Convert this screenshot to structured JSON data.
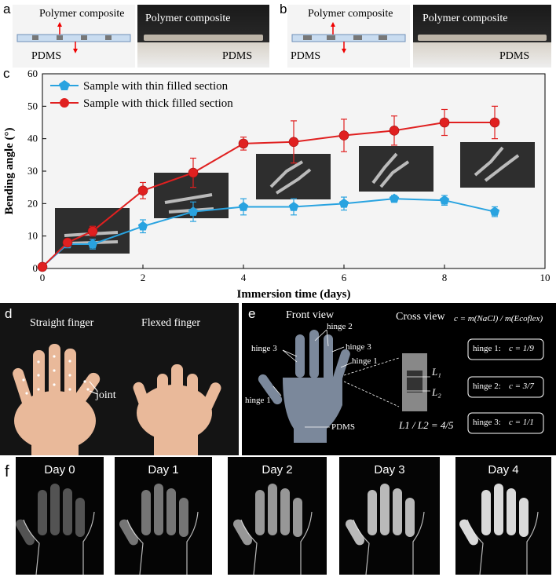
{
  "panels": {
    "a": {
      "letter": "a",
      "label_top": "Polymer composite",
      "label_bottom": "PDMS",
      "photo_label_top": "Polymer composite",
      "photo_label_bottom": "PDMS"
    },
    "b": {
      "letter": "b",
      "label_top": "Polymer composite",
      "label_bottom": "PDMS",
      "photo_label_top": "Polymer composite",
      "photo_label_bottom": "PDMS"
    },
    "c": {
      "letter": "c"
    },
    "d": {
      "letter": "d",
      "left_title": "Straight finger",
      "right_title": "Flexed finger",
      "joint_label": "joint"
    },
    "e": {
      "letter": "e",
      "front_view": "Front view",
      "cross_view": "Cross view",
      "hinge_1": "hinge 1",
      "hinge_2": "hinge 2",
      "hinge_3": "hinge 3",
      "pdms": "PDMS",
      "formula": "c = m(NaCl) / m(Ecoflex)",
      "ratio": "L1 / L2 = 4/5",
      "hinges": [
        {
          "label": "hinge 1:",
          "c": "c = 1/9"
        },
        {
          "label": "hinge 2:",
          "c": "c = 3/7"
        },
        {
          "label": "hinge 3:",
          "c": "c = 1/1"
        }
      ]
    },
    "f": {
      "letter": "f",
      "days": [
        "Day 0",
        "Day 1",
        "Day 2",
        "Day 3",
        "Day 4"
      ]
    }
  },
  "chart_data": {
    "type": "line",
    "xlabel": "Immersion time (days)",
    "ylabel": "Bending angle (°)",
    "xlim": [
      0,
      10
    ],
    "ylim": [
      0,
      60
    ],
    "xticks": [
      "0",
      "2",
      "4",
      "6",
      "8",
      "10"
    ],
    "yticks": [
      "0",
      "10",
      "20",
      "30",
      "40",
      "50",
      "60"
    ],
    "legend_position": "top-left",
    "series": [
      {
        "name": "Sample with thin filled section",
        "color": "#29a3e0",
        "marker": "pentagon",
        "x": [
          0,
          0.5,
          1,
          2,
          3,
          4,
          5,
          6,
          7,
          8,
          9
        ],
        "y": [
          0.5,
          7.5,
          7.5,
          13,
          17.5,
          19,
          19,
          20,
          21.5,
          21,
          17.5
        ],
        "err": [
          0,
          1,
          1.5,
          2,
          3,
          2.5,
          2.5,
          2,
          1,
          1.5,
          1.5
        ]
      },
      {
        "name": "Sample with thick filled section",
        "color": "#e02020",
        "marker": "circle",
        "x": [
          0,
          0.5,
          1,
          2,
          3,
          4,
          5,
          6,
          7,
          8,
          9
        ],
        "y": [
          0.5,
          8,
          11.5,
          24,
          29.5,
          38.5,
          39,
          41,
          42.5,
          45,
          45
        ],
        "err": [
          0,
          1,
          1.5,
          2.5,
          4.5,
          2,
          6.5,
          5,
          4.5,
          4,
          5
        ]
      }
    ]
  }
}
